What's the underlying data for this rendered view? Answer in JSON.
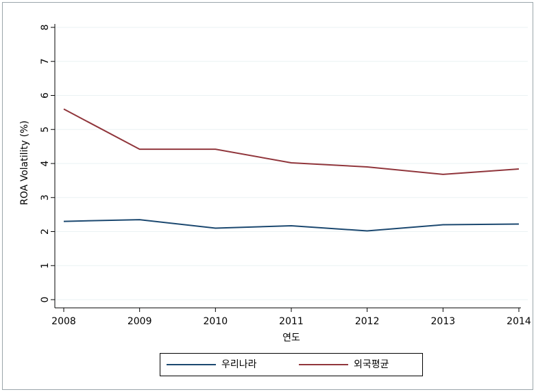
{
  "chart_data": {
    "type": "line",
    "x": [
      2008,
      2009,
      2010,
      2011,
      2012,
      2013,
      2014
    ],
    "series": [
      {
        "name": "우리나라",
        "color": "#1a476f",
        "values": [
          2.3,
          2.35,
          2.1,
          2.17,
          2.02,
          2.2,
          2.22
        ]
      },
      {
        "name": "외국평균",
        "color": "#90353b",
        "values": [
          5.6,
          4.42,
          4.42,
          4.02,
          3.9,
          3.68,
          3.84
        ]
      }
    ],
    "xlabel": "연도",
    "ylabel": "ROA Volatility (%)",
    "xlim": [
      2008,
      2014
    ],
    "xticks": [
      2008,
      2009,
      2010,
      2011,
      2012,
      2013,
      2014
    ],
    "ylim": [
      0,
      8
    ],
    "yticks": [
      0,
      1,
      2,
      3,
      4,
      5,
      6,
      7,
      8
    ],
    "grid": true,
    "legend": "bottom"
  }
}
